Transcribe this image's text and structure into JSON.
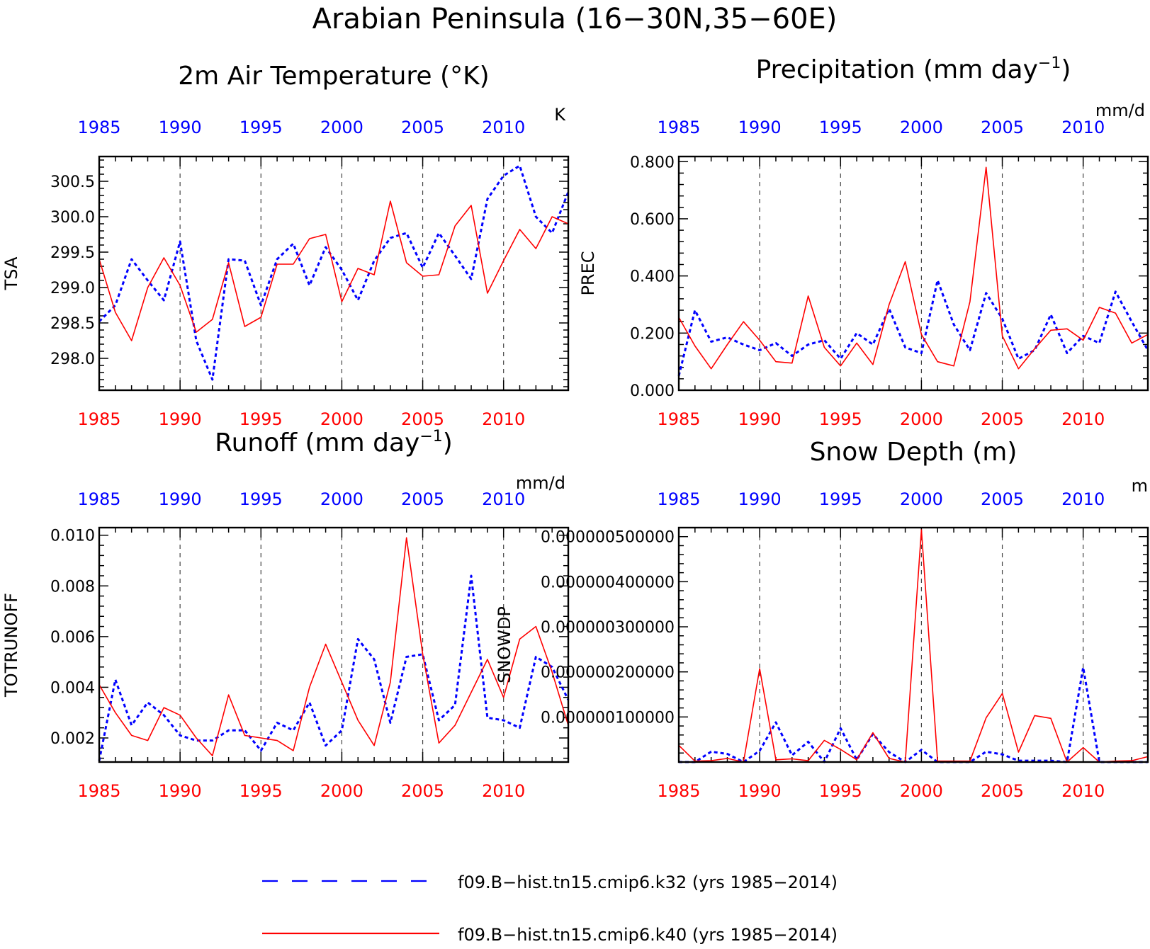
{
  "figure": {
    "title": "Arabian Peninsula (16−30N,35−60E)"
  },
  "colors": {
    "k32": "#0000ff",
    "k40": "#ff0000",
    "top_tick_labels": "#0000ff",
    "bottom_tick_labels": "#ff0000",
    "frame": "#000000"
  },
  "legend": {
    "placement": "bottom-center",
    "items": [
      {
        "label": "f09.B−hist.tn15.cmip6.k32 (yrs 1985−2014)",
        "color": "#0000ff",
        "style": "dashed"
      },
      {
        "label": "f09.B−hist.tn15.cmip6.k40 (yrs 1985−2014)",
        "color": "#ff0000",
        "style": "solid"
      }
    ]
  },
  "chart_data": [
    {
      "type": "line",
      "title": "2m Air Temperature (°K)",
      "title_sup": "",
      "title_tail": "",
      "unit": "K",
      "ylabel": "TSA",
      "xlim": [
        1985,
        2014
      ],
      "ylim": [
        297.55,
        300.85
      ],
      "major_step": 0.5,
      "minor_step": 0.1,
      "ytick_values": [
        298.0,
        298.5,
        299.0,
        299.5,
        300.0,
        300.5
      ],
      "ytick_labels": [
        "298.0",
        "298.5",
        "299.0",
        "299.5",
        "300.0",
        "300.5"
      ],
      "xtick_values": [
        1985,
        1990,
        1995,
        2000,
        2005,
        2010
      ],
      "xtick_labels": [
        "1985",
        "1990",
        "1995",
        "2000",
        "2005",
        "2010"
      ],
      "grid": "dashed vertical lines at 1990, 1995, 2000, 2005, 2010",
      "x": [
        1985,
        1986,
        1987,
        1988,
        1989,
        1990,
        1991,
        1992,
        1993,
        1994,
        1995,
        1996,
        1997,
        1998,
        1999,
        2000,
        2001,
        2002,
        2003,
        2004,
        2005,
        2006,
        2007,
        2008,
        2009,
        2010,
        2011,
        2012,
        2013,
        2014
      ],
      "series": [
        {
          "name": "f09.B−hist.tn15.cmip6.k32 (yrs 1985−2014)",
          "color": "#0000ff",
          "style": "dashed",
          "values": [
            298.52,
            298.75,
            299.4,
            299.1,
            298.82,
            299.65,
            298.25,
            297.7,
            299.4,
            299.38,
            298.75,
            299.4,
            299.62,
            299.03,
            299.57,
            299.25,
            298.82,
            299.38,
            299.7,
            299.77,
            299.28,
            299.77,
            299.45,
            299.12,
            300.25,
            300.58,
            300.72,
            300.0,
            299.77,
            300.35
          ]
        },
        {
          "name": "f09.B−hist.tn15.cmip6.k40 (yrs 1985−2014)",
          "color": "#ff0000",
          "style": "solid",
          "values": [
            299.4,
            298.65,
            298.25,
            299.0,
            299.42,
            299.03,
            298.37,
            298.55,
            299.35,
            298.45,
            298.58,
            299.33,
            299.33,
            299.69,
            299.75,
            298.8,
            299.27,
            299.18,
            300.22,
            299.35,
            299.16,
            299.18,
            299.87,
            300.16,
            298.92,
            299.38,
            299.82,
            299.55,
            300.0,
            299.9
          ]
        }
      ]
    },
    {
      "type": "line",
      "title": "Precipitation (mm day",
      "title_sup": "−1",
      "title_tail": ")",
      "unit": "mm/d",
      "ylabel": "PREC",
      "xlim": [
        1985,
        2014
      ],
      "ylim": [
        0.0,
        0.818
      ],
      "major_step": 0.2,
      "minor_step": 0.04,
      "ytick_values": [
        0.0,
        0.2,
        0.4,
        0.6,
        0.8
      ],
      "ytick_labels": [
        "0.000",
        "0.200",
        "0.400",
        "0.600",
        "0.800"
      ],
      "xtick_values": [
        1985,
        1990,
        1995,
        2000,
        2005,
        2010
      ],
      "xtick_labels": [
        "1985",
        "1990",
        "1995",
        "2000",
        "2005",
        "2010"
      ],
      "grid": "dashed vertical lines at 1990, 1995, 2000, 2005, 2010",
      "x": [
        1985,
        1986,
        1987,
        1988,
        1989,
        1990,
        1991,
        1992,
        1993,
        1994,
        1995,
        1996,
        1997,
        1998,
        1999,
        2000,
        2001,
        2002,
        2003,
        2004,
        2005,
        2006,
        2007,
        2008,
        2009,
        2010,
        2011,
        2012,
        2013,
        2014
      ],
      "series": [
        {
          "name": "f09.B−hist.tn15.cmip6.k32 (yrs 1985−2014)",
          "color": "#0000ff",
          "style": "dashed",
          "values": [
            0.05,
            0.28,
            0.17,
            0.185,
            0.16,
            0.14,
            0.165,
            0.12,
            0.16,
            0.175,
            0.11,
            0.2,
            0.16,
            0.285,
            0.15,
            0.13,
            0.385,
            0.23,
            0.14,
            0.34,
            0.25,
            0.11,
            0.14,
            0.265,
            0.13,
            0.19,
            0.165,
            0.345,
            0.24,
            0.14
          ]
        },
        {
          "name": "f09.B−hist.tn15.cmip6.k40 (yrs 1985−2014)",
          "color": "#ff0000",
          "style": "solid",
          "values": [
            0.255,
            0.155,
            0.075,
            0.16,
            0.24,
            0.175,
            0.1,
            0.095,
            0.33,
            0.15,
            0.085,
            0.165,
            0.09,
            0.3,
            0.45,
            0.195,
            0.1,
            0.085,
            0.31,
            0.78,
            0.19,
            0.075,
            0.145,
            0.21,
            0.215,
            0.175,
            0.29,
            0.27,
            0.165,
            0.195
          ]
        }
      ]
    },
    {
      "type": "line",
      "title": "Runoff (mm day",
      "title_sup": "−1",
      "title_tail": ")",
      "unit": "mm/d",
      "ylabel": "TOTRUNOFF",
      "xlim": [
        1985,
        2014
      ],
      "ylim": [
        0.00105,
        0.0103
      ],
      "major_step": 0.002,
      "minor_step": 0.0004,
      "ytick_values": [
        0.002,
        0.004,
        0.006,
        0.008,
        0.01
      ],
      "ytick_labels": [
        "0.002",
        "0.004",
        "0.006",
        "0.008",
        "0.010"
      ],
      "xtick_values": [
        1985,
        1990,
        1995,
        2000,
        2005,
        2010
      ],
      "xtick_labels": [
        "1985",
        "1990",
        "1995",
        "2000",
        "2005",
        "2010"
      ],
      "grid": "dashed vertical lines at 1990, 1995, 2000, 2005, 2010",
      "x": [
        1985,
        1986,
        1987,
        1988,
        1989,
        1990,
        1991,
        1992,
        1993,
        1994,
        1995,
        1996,
        1997,
        1998,
        1999,
        2000,
        2001,
        2002,
        2003,
        2004,
        2005,
        2006,
        2007,
        2008,
        2009,
        2010,
        2011,
        2012,
        2013,
        2014
      ],
      "series": [
        {
          "name": "f09.B−hist.tn15.cmip6.k32 (yrs 1985−2014)",
          "color": "#0000ff",
          "style": "dashed",
          "values": [
            0.0011,
            0.0043,
            0.0025,
            0.0034,
            0.0029,
            0.0021,
            0.0019,
            0.0019,
            0.0023,
            0.0023,
            0.0015,
            0.0026,
            0.0023,
            0.0034,
            0.0017,
            0.0023,
            0.0059,
            0.0051,
            0.0026,
            0.0052,
            0.0053,
            0.0027,
            0.0033,
            0.0084,
            0.0028,
            0.0027,
            0.0024,
            0.0052,
            0.0048,
            0.0035
          ]
        },
        {
          "name": "f09.B−hist.tn15.cmip6.k40 (yrs 1985−2014)",
          "color": "#ff0000",
          "style": "solid",
          "values": [
            0.0041,
            0.003,
            0.0021,
            0.0019,
            0.0032,
            0.0029,
            0.002,
            0.0013,
            0.0037,
            0.0021,
            0.002,
            0.0019,
            0.0015,
            0.004,
            0.0057,
            0.0042,
            0.0027,
            0.0017,
            0.0042,
            0.0099,
            0.0053,
            0.0018,
            0.0025,
            0.0038,
            0.0051,
            0.0036,
            0.0059,
            0.0064,
            0.0046,
            0.0025
          ]
        }
      ]
    },
    {
      "type": "line",
      "title": "Snow Depth (m)",
      "title_sup": "",
      "title_tail": "",
      "unit": "m",
      "ylabel": "SNOWDP",
      "xlim": [
        1985,
        2014
      ],
      "ylim": [
        0.0,
        5.2e-07
      ],
      "major_step": 1e-07,
      "minor_step": 2e-08,
      "ytick_values": [
        1e-07,
        2e-07,
        3e-07,
        4e-07,
        5e-07
      ],
      "ytick_labels": [
        "0.000000100000",
        "0.000000200000",
        "0.000000300000",
        "0.000000400000",
        "0.000000500000"
      ],
      "xtick_values": [
        1985,
        1990,
        1995,
        2000,
        2005,
        2010
      ],
      "xtick_labels": [
        "1985",
        "1990",
        "1995",
        "2000",
        "2005",
        "2010"
      ],
      "grid": "dashed vertical lines at 1990, 1995, 2000, 2005, 2010",
      "x": [
        1985,
        1986,
        1987,
        1988,
        1989,
        1990,
        1991,
        1992,
        1993,
        1994,
        1995,
        1996,
        1997,
        1998,
        1999,
        2000,
        2001,
        2002,
        2003,
        2004,
        2005,
        2006,
        2007,
        2008,
        2009,
        2010,
        2011,
        2012,
        2013,
        2014
      ],
      "series": [
        {
          "name": "f09.B−hist.tn15.cmip6.k32 (yrs 1985−2014)",
          "color": "#0000ff",
          "style": "dashed",
          "values": [
            0.0,
            0.0,
            2.3e-08,
            1.8e-08,
            0.0,
            2.5e-08,
            8.8e-08,
            1.5e-08,
            4.5e-08,
            0.0,
            7.5e-08,
            5e-09,
            6.2e-08,
            2.2e-08,
            0.0,
            2.7e-08,
            0.0,
            0.0,
            0.0,
            2.3e-08,
            1.7e-08,
            3e-09,
            3e-09,
            3e-09,
            0.0,
            2.1e-07,
            0.0,
            0.0,
            0.0,
            0.0
          ]
        },
        {
          "name": "f09.B−hist.tn15.cmip6.k40 (yrs 1985−2014)",
          "color": "#ff0000",
          "style": "solid",
          "values": [
            3.7e-08,
            2e-09,
            3e-09,
            8e-09,
            0.0,
            2.07e-07,
            5e-09,
            7e-09,
            3e-09,
            4.8e-08,
            2.8e-08,
            5e-09,
            6.5e-08,
            8e-09,
            0.0,
            5.15e-07,
            2e-09,
            2e-09,
            2e-09,
            9.8e-08,
            1.52e-07,
            2.2e-08,
            1.03e-07,
            9.7e-08,
            0.0,
            3.2e-08,
            0.0,
            2e-09,
            3e-09,
            1.2e-08
          ]
        }
      ]
    }
  ]
}
